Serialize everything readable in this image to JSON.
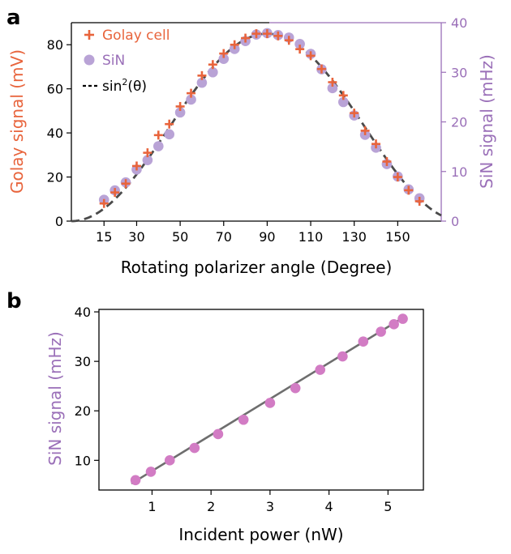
{
  "colors": {
    "golay": "#E8643C",
    "sin_a": "#B9A3D6",
    "sin_label": "#9A6FB8",
    "sin_b": "#D27CC4",
    "fit_a": "#4A4A4A",
    "fit_b": "#6E6E6E"
  },
  "chart_data": [
    {
      "panel": "a",
      "type": "scatter",
      "xlabel": "Rotating polarizer angle (Degree)",
      "ylabel_left": "Golay signal (mV)",
      "ylabel_right": "SiN signal (mHz)",
      "xlim": [
        0,
        170
      ],
      "ylim_left": [
        0,
        90
      ],
      "ylim_right": [
        0,
        40
      ],
      "xticks": [
        15,
        30,
        50,
        70,
        90,
        110,
        130,
        150
      ],
      "yticks_left": [
        0,
        20,
        40,
        60,
        80
      ],
      "yticks_right": [
        0,
        10,
        20,
        30,
        40
      ],
      "legend": {
        "position": "top-left",
        "golay_label": "Golay cell",
        "sin_label": "SiN",
        "fit_label_prefix": "sin",
        "fit_label_exp": "2",
        "fit_label_suffix": "(θ)"
      },
      "series": [
        {
          "name": "Golay cell",
          "marker": "plus",
          "axis": "left",
          "x": [
            15,
            20,
            25,
            30,
            35,
            40,
            45,
            50,
            55,
            60,
            65,
            70,
            75,
            80,
            85,
            90,
            95,
            100,
            105,
            110,
            115,
            120,
            125,
            130,
            135,
            140,
            145,
            150,
            155,
            160
          ],
          "y": [
            8,
            13,
            17,
            25,
            31,
            39,
            44,
            52,
            58,
            66,
            71,
            76,
            80,
            83,
            85,
            85,
            84,
            82,
            78,
            75,
            69,
            63,
            57,
            49,
            41,
            35,
            27,
            20,
            14,
            9
          ]
        },
        {
          "name": "SiN",
          "marker": "circle",
          "axis": "right",
          "x": [
            15,
            20,
            25,
            30,
            35,
            40,
            45,
            50,
            55,
            60,
            65,
            70,
            75,
            80,
            85,
            90,
            95,
            100,
            105,
            110,
            115,
            120,
            125,
            130,
            135,
            140,
            145,
            150,
            155,
            160
          ],
          "y": [
            4.3,
            6.2,
            7.8,
            10.4,
            12.3,
            15.1,
            17.5,
            21.9,
            24.5,
            27.9,
            30.0,
            32.7,
            34.7,
            36.3,
            37.6,
            37.9,
            37.5,
            37.0,
            35.7,
            33.7,
            30.6,
            26.8,
            24.0,
            21.3,
            17.4,
            14.8,
            11.5,
            9.0,
            6.4,
            4.6
          ]
        },
        {
          "name": "sin2(theta)",
          "type": "line",
          "style": "dashed",
          "axis": "left",
          "function": "A*sin^2(theta)",
          "amplitude": 85,
          "x_range": [
            0,
            170
          ]
        }
      ]
    },
    {
      "panel": "b",
      "type": "scatter",
      "xlabel": "Incident power (nW)",
      "ylabel": "SiN signal (mHz)",
      "xlim": [
        0.1,
        5.6
      ],
      "ylim": [
        4.0,
        40.5
      ],
      "xticks": [
        1,
        2,
        3,
        4,
        5
      ],
      "yticks": [
        10,
        20,
        30,
        40
      ],
      "series": [
        {
          "name": "SiN",
          "marker": "circle",
          "x": [
            0.72,
            0.98,
            1.3,
            1.72,
            2.12,
            2.55,
            3.0,
            3.43,
            3.85,
            4.23,
            4.58,
            4.88,
            5.1,
            5.25
          ],
          "y": [
            6.0,
            7.7,
            10.0,
            12.5,
            15.3,
            18.2,
            21.6,
            24.6,
            28.3,
            31.0,
            34.0,
            36.0,
            37.5,
            38.6
          ]
        },
        {
          "name": "linear fit",
          "type": "line",
          "x": [
            0.65,
            5.28
          ],
          "y": [
            5.3,
            39.0
          ]
        }
      ]
    }
  ],
  "panels": {
    "a_label": "a",
    "b_label": "b"
  }
}
